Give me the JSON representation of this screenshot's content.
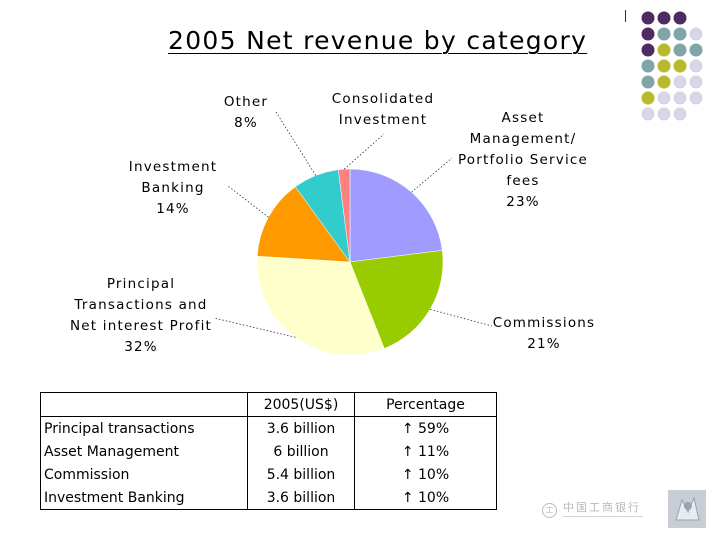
{
  "title": "2005 Net revenue by category",
  "decor_colors": {
    "purple": "#4e2a5e",
    "teal": "#7fa5a9",
    "olive": "#b7ba2c",
    "lavender": "#d6d6e6"
  },
  "chart_data": {
    "type": "pie",
    "title": "2005 Net revenue by category",
    "slices": [
      {
        "label": [
          "Asset",
          "Management/",
          "Portfolio Service",
          "fees"
        ],
        "value": 23,
        "value_text": "23%",
        "color": "#a09cff"
      },
      {
        "label": [
          "Commissions"
        ],
        "value": 21,
        "value_text": "21%",
        "color": "#99cc00"
      },
      {
        "label": [
          "Principal",
          "Transactions and",
          "Net interest Profit"
        ],
        "value": 32,
        "value_text": "32%",
        "color": "#ffffcc"
      },
      {
        "label": [
          "Investment",
          "Banking"
        ],
        "value": 14,
        "value_text": "14%",
        "color": "#ff9900"
      },
      {
        "label": [
          "Other"
        ],
        "value": 8,
        "value_text": "8%",
        "color": "#33cccc"
      },
      {
        "label": [
          "Consolidated",
          "Investment"
        ],
        "value": 2,
        "value_text": "",
        "color": "#ff8080"
      }
    ]
  },
  "table": {
    "headers": [
      "",
      "2005(US$)",
      "Percentage"
    ],
    "rows": [
      {
        "category": "Principal transactions",
        "amount": "3.6 billion",
        "change": "↑ 59%"
      },
      {
        "category": "Asset Management",
        "amount": "6 billion",
        "change": "↑ 11%"
      },
      {
        "category": "Commission",
        "amount": "5.4 billion",
        "change": "↑ 10%"
      },
      {
        "category": "Investment Banking",
        "amount": "3.6 billion",
        "change": "↑ 10%"
      }
    ]
  },
  "footer": {
    "bank_name": "中国工商银行",
    "seal_glyph": "工"
  }
}
